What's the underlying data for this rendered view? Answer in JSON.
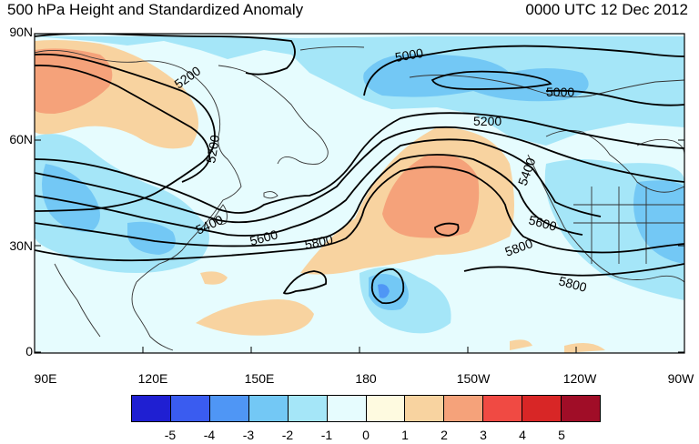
{
  "header": {
    "title_left": "500 hPa Height and Standardized Anomaly",
    "title_right": "0000 UTC 12 Dec 2012"
  },
  "axes": {
    "y_labels": [
      "90N",
      "60N",
      "30N",
      "0"
    ],
    "x_labels": [
      "90E",
      "120E",
      "150E",
      "180",
      "150W",
      "120W",
      "90W"
    ]
  },
  "contour_labels": [
    "5000",
    "5000",
    "5200",
    "5200",
    "5200",
    "5400",
    "5400",
    "5600",
    "5600",
    "5800",
    "5800",
    "5800"
  ],
  "colorbar": {
    "labels": [
      "-5",
      "-4",
      "-3",
      "-2",
      "-1",
      "0",
      "1",
      "2",
      "3",
      "4",
      "5"
    ],
    "colors": [
      "#1f1fd2",
      "#3a5cf0",
      "#4f96f5",
      "#73c8f5",
      "#a5e6f8",
      "#e6fcfe",
      "#fefae0",
      "#f8d3a0",
      "#f5a27a",
      "#f04a43",
      "#d82626",
      "#a00d27"
    ]
  },
  "colors": {
    "anomaly_neg_1": "#a5e6f8",
    "anomaly_neg_2": "#73c8f5",
    "anomaly_neg_3": "#4f96f5",
    "anomaly_pos_1": "#f8d3a0",
    "anomaly_pos_2": "#f5a27a",
    "background": "#e6fcfe",
    "contour": "#000000",
    "coast": "#333333"
  }
}
